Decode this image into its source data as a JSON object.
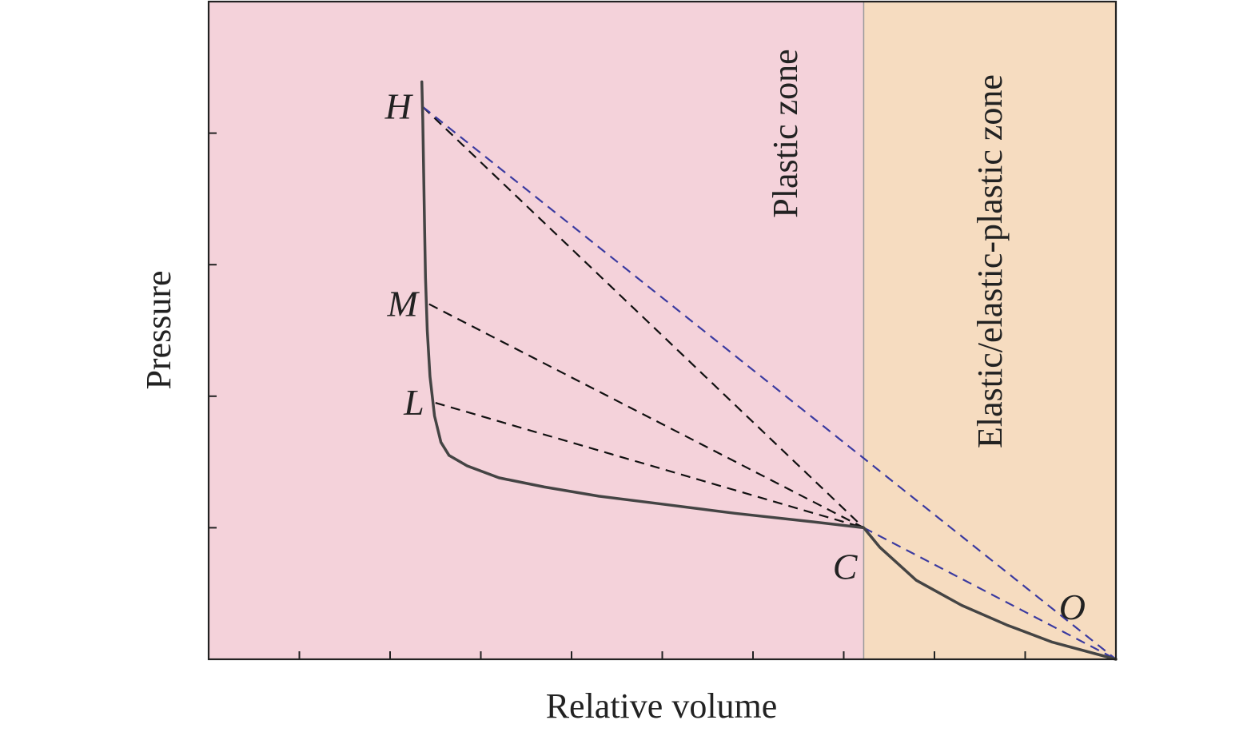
{
  "chart_data": {
    "type": "line",
    "title": "",
    "xlabel": "Relative volume",
    "ylabel": "Pressure",
    "xlim": [
      0,
      10
    ],
    "ylim": [
      0,
      5
    ],
    "x_ticks": [
      1,
      2,
      3,
      4,
      5,
      6,
      7,
      8,
      9
    ],
    "y_ticks": [
      1,
      2,
      3,
      4
    ],
    "grid": false,
    "zones": [
      {
        "label": "Plastic zone",
        "from": 0,
        "to": 7.22,
        "color": "#f4d2da"
      },
      {
        "label": "Elastic/elastic-plastic zone",
        "from": 7.22,
        "to": 10,
        "color": "#f6dcc0"
      }
    ],
    "zone_boundary_color": "#9a9a9a",
    "series": [
      {
        "name": "",
        "style": "solid",
        "color": "#444444",
        "x": [
          2.35,
          2.36,
          2.37,
          2.38,
          2.39,
          2.41,
          2.44,
          2.49,
          2.56,
          2.65,
          2.85,
          3.2,
          3.7,
          4.3,
          5.0,
          5.8,
          6.6,
          7.22,
          7.4,
          7.8,
          8.3,
          8.8,
          9.3,
          10.0
        ],
        "y": [
          4.39,
          4.1,
          3.7,
          3.3,
          2.9,
          2.5,
          2.15,
          1.85,
          1.65,
          1.55,
          1.47,
          1.38,
          1.31,
          1.24,
          1.18,
          1.11,
          1.05,
          1.0,
          0.85,
          0.6,
          0.41,
          0.26,
          0.13,
          0.0
        ]
      }
    ],
    "lines": [
      {
        "from": "H",
        "to": "C",
        "style": "dashed",
        "color": "#111111"
      },
      {
        "from": "M",
        "to": "C",
        "style": "dashed",
        "color": "#111111"
      },
      {
        "from": "L",
        "to": "C",
        "style": "dashed",
        "color": "#111111"
      },
      {
        "from": "H",
        "to": "O",
        "style": "dashed",
        "color": "#3a3aa0"
      },
      {
        "from": "C",
        "to": "O",
        "style": "dashed",
        "color": "#3a3aa0"
      }
    ],
    "points": {
      "H": {
        "x": 2.36,
        "y": 4.2
      },
      "M": {
        "x": 2.43,
        "y": 2.7
      },
      "L": {
        "x": 2.5,
        "y": 1.95
      },
      "C": {
        "x": 7.22,
        "y": 1.0
      },
      "O": {
        "x": 10.0,
        "y": 0.0
      }
    },
    "annotations": [
      {
        "text": "H",
        "anchor": "H",
        "placement": "left"
      },
      {
        "text": "M",
        "anchor": "M",
        "placement": "left"
      },
      {
        "text": "L",
        "anchor": "L",
        "placement": "left"
      },
      {
        "text": "C",
        "anchor": "C",
        "placement": "below-left"
      },
      {
        "text": "O",
        "anchor": "O",
        "placement": "above-left"
      }
    ]
  }
}
